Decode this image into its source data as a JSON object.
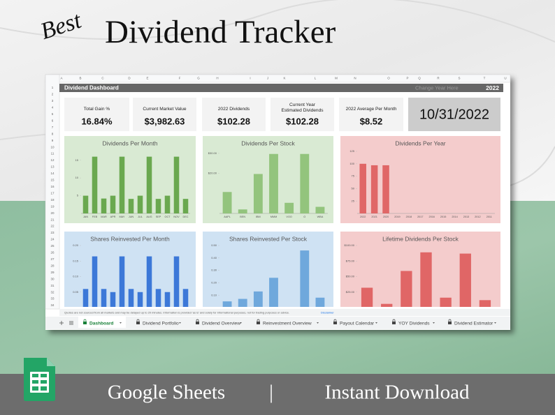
{
  "header": {
    "script": "Best",
    "title": "Dividend Tracker"
  },
  "sheet": {
    "columns": [
      "A",
      "B",
      "C",
      "D",
      "E",
      "F",
      "G",
      "H",
      "I",
      "J",
      "K",
      "L",
      "M",
      "N",
      "O",
      "P",
      "Q",
      "R",
      "S",
      "T",
      "U"
    ],
    "rows": [
      1,
      2,
      3,
      4,
      5,
      6,
      7,
      8,
      9,
      10,
      11,
      12,
      13,
      14,
      15,
      16,
      17,
      18,
      19,
      20,
      21,
      22,
      23,
      24,
      25,
      26,
      27,
      28,
      29,
      30,
      31,
      32,
      33,
      34
    ],
    "dashboard_title": "Dividend Dashboard",
    "year_prompt": "Change Year Here",
    "year": "2022",
    "kpis": [
      {
        "label": "Total Gain %",
        "value": "16.84%"
      },
      {
        "label": "Current Market Value",
        "value": "$3,982.63"
      },
      {
        "label": "2022 Dividends",
        "value": "$102.28"
      },
      {
        "label": "Current Year Estimated Dividends",
        "value": "$102.28"
      },
      {
        "label": "2022 Average Per Month",
        "value": "$8.52"
      }
    ],
    "date": "10/31/2022",
    "disclaimer": "Quotes are not sourced from all markets and may be delayed up to 20 minutes. Information is provided 'as is' and solely for informational purposes, not for trading purposes or advice.",
    "disclaimer_link": "Disclaimer",
    "tabs": [
      "Dashboard",
      "Dividend Portfolio",
      "Dividend Overview",
      "Reinvestment Overview",
      "Payout Calendar",
      "YOY Dividends",
      "Dividend Estimator"
    ]
  },
  "chart_data": [
    {
      "type": "bar",
      "title": "Dividends Per Month",
      "categories": [
        "JAN",
        "FEB",
        "MAR",
        "APR",
        "MAY",
        "JUN",
        "JUL",
        "AUG",
        "SEP",
        "OCT",
        "NOV",
        "DEC"
      ],
      "values": [
        5,
        16,
        4.2,
        5,
        16,
        4.1,
        5,
        16,
        4.1,
        5,
        16,
        4.1
      ],
      "color": "#6aa84f",
      "ylim": [
        0,
        17.5
      ],
      "yticks": [
        5,
        10,
        15
      ]
    },
    {
      "type": "bar",
      "title": "Dividends Per Stock",
      "categories": [
        "AAPL",
        "BEN",
        "IBM",
        "MMM",
        "VOO",
        "O",
        "WBA"
      ],
      "values": [
        10.7,
        2,
        19.7,
        29.7,
        5.3,
        29.7,
        3.3
      ],
      "color": "#93c47d",
      "ylim": [
        0,
        31
      ],
      "yticks": [
        {
          "value": 20,
          "label": "$20.00"
        },
        {
          "value": 30,
          "label": "$30.00"
        }
      ]
    },
    {
      "type": "bar",
      "title": "Dividends Per Year",
      "categories": [
        "2022",
        "2021",
        "2020",
        "2019",
        "2018",
        "2017",
        "2016",
        "2015",
        "2014",
        "2013",
        "2012",
        "2011"
      ],
      "values": [
        100,
        97,
        97,
        0,
        0,
        0,
        0,
        0,
        0,
        0,
        0,
        0
      ],
      "color": "#e06666",
      "ylim": [
        0,
        125
      ],
      "yticks": [
        25,
        50,
        75,
        100,
        125
      ]
    },
    {
      "type": "bar",
      "title": "Shares Reinvested Per Month",
      "values": [
        0.06,
        0.165,
        0.06,
        0.05,
        0.165,
        0.06,
        0.05,
        0.165,
        0.06,
        0.05,
        0.165,
        0.06
      ],
      "color": "#3c78d8",
      "ylim": [
        0,
        0.2
      ],
      "yticks": [
        0.05,
        {
          "value": 0.1,
          "label": "0.10"
        },
        0.15,
        {
          "value": 0.2,
          "label": "0.20"
        }
      ]
    },
    {
      "type": "bar",
      "title": "Shares Reinvested Per Stock",
      "values": [
        0.05,
        0.07,
        0.13,
        0.24,
        0,
        0.46,
        0.08
      ],
      "color": "#6fa8dc",
      "ylim": [
        0,
        0.5
      ],
      "yticks": [
        {
          "value": 0.1,
          "label": "0.10"
        },
        {
          "value": 0.2,
          "label": "0.20"
        },
        {
          "value": 0.3,
          "label": "0.30"
        },
        {
          "value": 0.4,
          "label": "0.40"
        },
        {
          "value": 0.5,
          "label": "0.50"
        }
      ]
    },
    {
      "type": "bar",
      "title": "Lifetime Dividends Per Stock",
      "values": [
        32,
        6,
        59,
        89,
        16,
        87,
        12
      ],
      "color": "#e06666",
      "ylim": [
        0,
        100
      ],
      "yticks": [
        {
          "value": 25,
          "label": "$25.00"
        },
        {
          "value": 50,
          "label": "$50.00"
        },
        {
          "value": 75,
          "label": "$75.00"
        },
        {
          "value": 100,
          "label": "$100.00"
        }
      ]
    }
  ],
  "footer": {
    "left": "Google Sheets",
    "separator": "|",
    "right": "Instant Download"
  }
}
